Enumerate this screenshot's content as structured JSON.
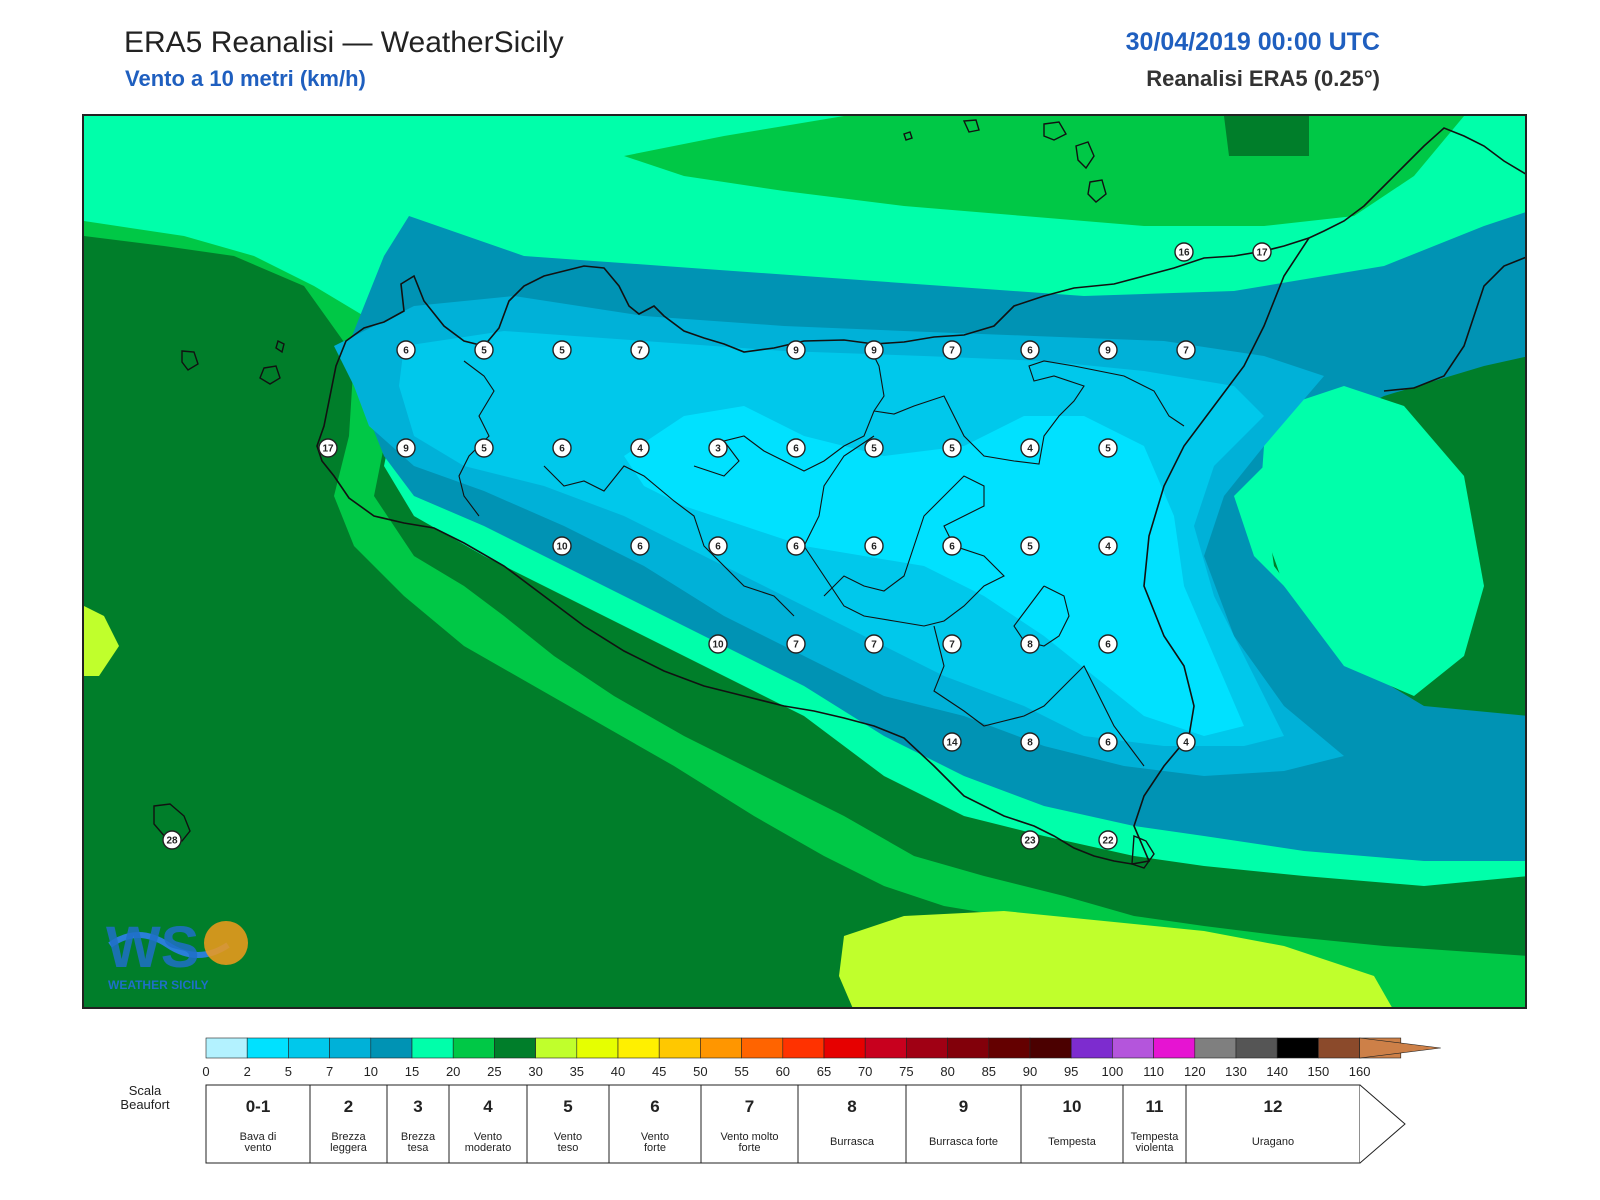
{
  "header": {
    "title": "ERA5 Reanalisi — WeatherSicily",
    "subtitle": "Vento a 10 metri (km/h)",
    "datetime": "30/04/2019 00:00 UTC",
    "source": "Reanalisi ERA5 (0.25°)"
  },
  "logo": {
    "text": "WEATHER SICILY",
    "mark": "WS"
  },
  "map": {
    "region": "Sicily",
    "fill_colors": {
      "0-2": "#b3f2ff",
      "2-5": "#00e1ff",
      "5-7": "#00c8eb",
      "7-10": "#00b1d8",
      "10-15": "#0093b4",
      "15-20": "#00ffaa",
      "20-25": "#00c846",
      "25-30": "#007e2a",
      "30-35": "#c0ff2c"
    },
    "stations": [
      {
        "label": "16"
      },
      {
        "label": "17"
      },
      {
        "label": "6"
      },
      {
        "label": "5"
      },
      {
        "label": "5"
      },
      {
        "label": "7"
      },
      {
        "label": "9"
      },
      {
        "label": "9"
      },
      {
        "label": "7"
      },
      {
        "label": "6"
      },
      {
        "label": "9"
      },
      {
        "label": "7"
      },
      {
        "label": "17"
      },
      {
        "label": "9"
      },
      {
        "label": "5"
      },
      {
        "label": "6"
      },
      {
        "label": "4"
      },
      {
        "label": "3"
      },
      {
        "label": "6"
      },
      {
        "label": "5"
      },
      {
        "label": "5"
      },
      {
        "label": "4"
      },
      {
        "label": "5"
      },
      {
        "label": "10"
      },
      {
        "label": "6"
      },
      {
        "label": "6"
      },
      {
        "label": "6"
      },
      {
        "label": "6"
      },
      {
        "label": "6"
      },
      {
        "label": "5"
      },
      {
        "label": "4"
      },
      {
        "label": "10"
      },
      {
        "label": "7"
      },
      {
        "label": "7"
      },
      {
        "label": "7"
      },
      {
        "label": "8"
      },
      {
        "label": "6"
      },
      {
        "label": "14"
      },
      {
        "label": "8"
      },
      {
        "label": "6"
      },
      {
        "label": "4"
      },
      {
        "label": "28"
      },
      {
        "label": "23"
      },
      {
        "label": "22"
      }
    ]
  },
  "colorbar": {
    "ticks": [
      "0",
      "2",
      "5",
      "7",
      "10",
      "15",
      "20",
      "25",
      "30",
      "35",
      "40",
      "45",
      "50",
      "55",
      "60",
      "65",
      "70",
      "75",
      "80",
      "85",
      "90",
      "95",
      "100",
      "110",
      "120",
      "130",
      "140",
      "150",
      "160"
    ],
    "colors": [
      "#b3f2ff",
      "#00e1ff",
      "#00c8eb",
      "#00b1d8",
      "#0093b4",
      "#00ffaa",
      "#00c846",
      "#007e2a",
      "#c0ff2c",
      "#e6ff00",
      "#fff000",
      "#ffc800",
      "#ff9600",
      "#ff6400",
      "#ff3200",
      "#e60000",
      "#c8001e",
      "#a00014",
      "#82000a",
      "#640000",
      "#4b0000",
      "#7d2ccf",
      "#b455dc",
      "#e614d2",
      "#7f7f7f",
      "#555555",
      "#000000",
      "#8b4a2b",
      "#cd8048"
    ]
  },
  "beaufort": {
    "label": "Scala Beaufort",
    "levels": [
      {
        "num": "0-1",
        "desc": "Bava di vento"
      },
      {
        "num": "2",
        "desc": "Brezza leggera"
      },
      {
        "num": "3",
        "desc": "Brezza tesa"
      },
      {
        "num": "4",
        "desc": "Vento moderato"
      },
      {
        "num": "5",
        "desc": "Vento teso"
      },
      {
        "num": "6",
        "desc": "Vento forte"
      },
      {
        "num": "7",
        "desc": "Vento molto forte"
      },
      {
        "num": "8",
        "desc": "Burrasca"
      },
      {
        "num": "9",
        "desc": "Burrasca forte"
      },
      {
        "num": "10",
        "desc": "Tempesta"
      },
      {
        "num": "11",
        "desc": "Tempesta violenta"
      },
      {
        "num": "12",
        "desc": "Uragano"
      }
    ]
  }
}
